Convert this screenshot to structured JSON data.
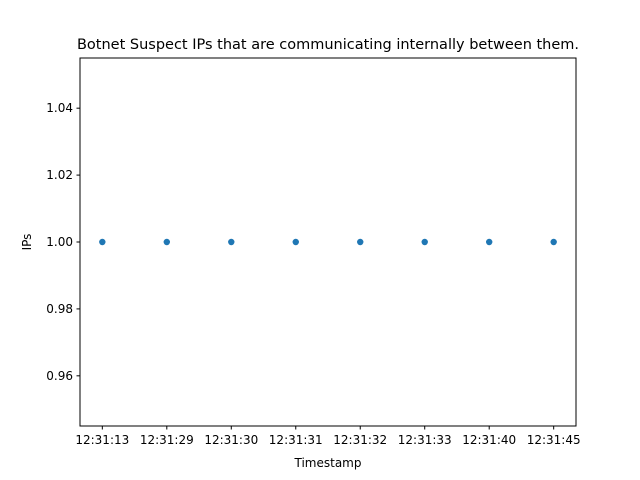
{
  "chart_data": {
    "type": "scatter",
    "title": "Botnet Suspect IPs that are communicating internally between them.",
    "xlabel": "Timestamp",
    "ylabel": "IPs",
    "categories": [
      "12:31:13",
      "12:31:29",
      "12:31:30",
      "12:31:31",
      "12:31:32",
      "12:31:33",
      "12:31:40",
      "12:31:45"
    ],
    "values": [
      1.0,
      1.0,
      1.0,
      1.0,
      1.0,
      1.0,
      1.0,
      1.0
    ],
    "ylim": [
      0.945,
      1.055
    ],
    "yticks": [
      0.96,
      0.98,
      1.0,
      1.02,
      1.04
    ],
    "ytick_labels": [
      "0.96",
      "0.98",
      "1.00",
      "1.02",
      "1.04"
    ],
    "grid": false,
    "marker_color": "#1f77b4"
  }
}
